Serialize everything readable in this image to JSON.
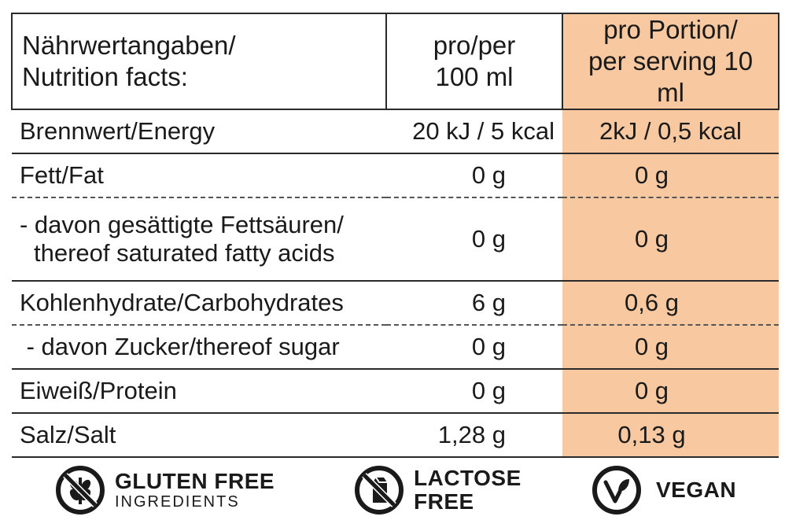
{
  "header": {
    "col1_line1": "Nährwertangaben/",
    "col1_line2": "Nutrition facts:",
    "col2_line1": "pro/per",
    "col2_line2": "100 ml",
    "col3_line1": "pro Portion/",
    "col3_line2": "per serving 10 ml"
  },
  "rows": [
    {
      "label": "Brennwert/Energy",
      "per100": "20 kJ / 5 kcal",
      "perServing": "2kJ / 0,5 kcal"
    },
    {
      "label": "Fett/Fat",
      "per100": "0 g",
      "perServing": "0 g"
    },
    {
      "label_line1": "- davon gesättigte Fettsäuren/",
      "label_line2": "thereof saturated fatty acids",
      "per100": "0 g",
      "perServing": "0 g"
    },
    {
      "label": "Kohlenhydrate/Carbohydrates",
      "per100": "6 g",
      "perServing": "0,6 g"
    },
    {
      "label": " - davon Zucker/thereof sugar",
      "per100": "0 g",
      "perServing": "0 g"
    },
    {
      "label": "Eiweiß/Protein",
      "per100": "0 g",
      "perServing": "0 g"
    },
    {
      "label": "Salz/Salt",
      "per100": "1,28 g",
      "perServing": "0,13 g"
    }
  ],
  "badges": {
    "gluten": {
      "title": "GLUTEN FREE",
      "subtitle": "INGREDIENTS",
      "icon": "wheat-crossed-icon"
    },
    "lactose": {
      "title_line1": "LACTOSE",
      "title_line2": "FREE",
      "icon": "milk-carton-crossed-icon"
    },
    "vegan": {
      "title": "VEGAN",
      "icon": "vegan-leaf-icon"
    }
  },
  "colors": {
    "highlight": "#f8c9a0",
    "text": "#1a1a1a"
  }
}
